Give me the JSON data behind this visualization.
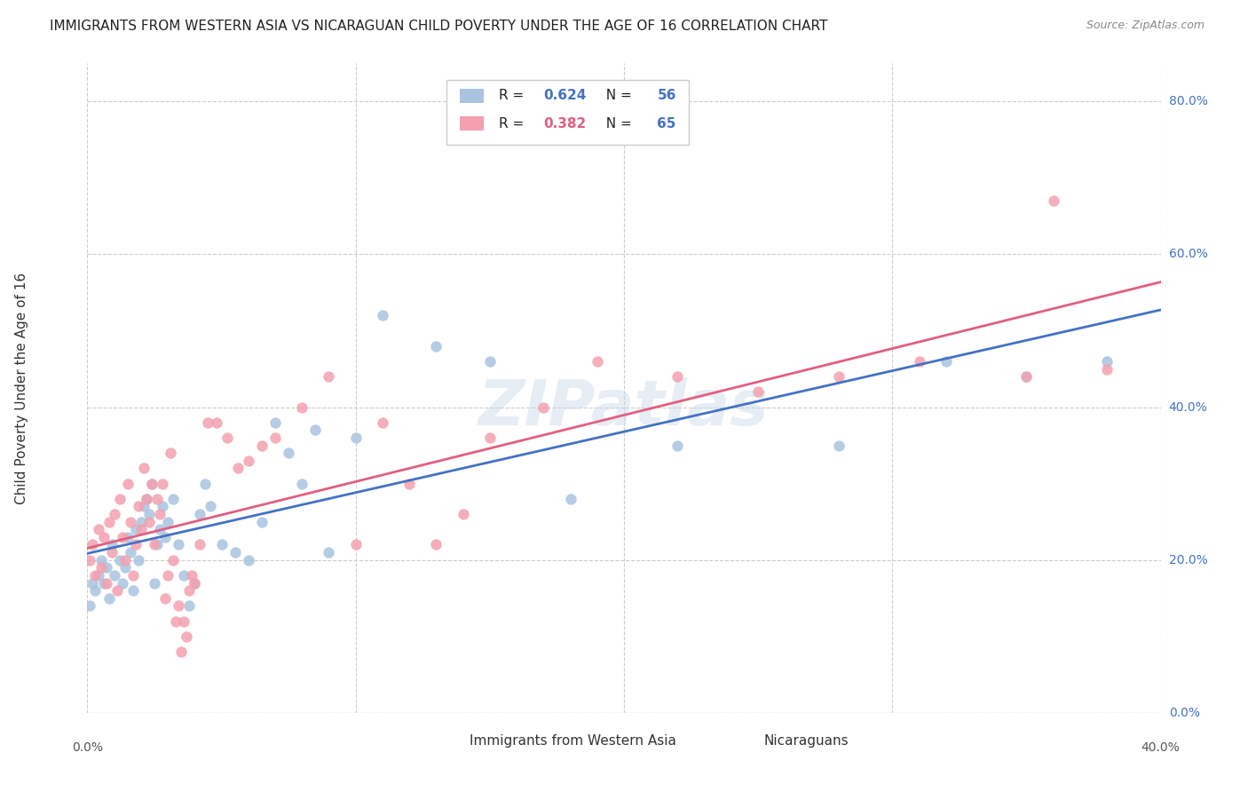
{
  "title": "IMMIGRANTS FROM WESTERN ASIA VS NICARAGUAN CHILD POVERTY UNDER THE AGE OF 16 CORRELATION CHART",
  "source": "Source: ZipAtlas.com",
  "ylabel": "Child Poverty Under the Age of 16",
  "right_yticks": [
    "0.0%",
    "20.0%",
    "40.0%",
    "60.0%",
    "80.0%"
  ],
  "right_ytick_vals": [
    0.0,
    0.2,
    0.4,
    0.6,
    0.8
  ],
  "xlim": [
    0.0,
    0.4
  ],
  "ylim": [
    0.0,
    0.85
  ],
  "legend1_r": "0.624",
  "legend1_n": "56",
  "legend2_r": "0.382",
  "legend2_n": "65",
  "legend1_label": "Immigrants from Western Asia",
  "legend2_label": "Nicaraguans",
  "color_blue": "#a8c4e0",
  "color_pink": "#f4a0b0",
  "line_color_blue": "#4472c4",
  "line_color_pink": "#e06080",
  "background_color": "#ffffff",
  "watermark": "ZIPatlas",
  "blue_scatter_x": [
    0.001,
    0.002,
    0.003,
    0.004,
    0.005,
    0.006,
    0.007,
    0.008,
    0.009,
    0.01,
    0.012,
    0.013,
    0.014,
    0.015,
    0.016,
    0.017,
    0.018,
    0.019,
    0.02,
    0.021,
    0.022,
    0.023,
    0.024,
    0.025,
    0.026,
    0.027,
    0.028,
    0.029,
    0.03,
    0.032,
    0.034,
    0.036,
    0.038,
    0.04,
    0.042,
    0.044,
    0.046,
    0.05,
    0.055,
    0.06,
    0.065,
    0.07,
    0.075,
    0.08,
    0.085,
    0.09,
    0.1,
    0.11,
    0.13,
    0.15,
    0.18,
    0.22,
    0.28,
    0.32,
    0.35,
    0.38
  ],
  "blue_scatter_y": [
    0.14,
    0.17,
    0.16,
    0.18,
    0.2,
    0.17,
    0.19,
    0.15,
    0.22,
    0.18,
    0.2,
    0.17,
    0.19,
    0.23,
    0.21,
    0.16,
    0.24,
    0.2,
    0.25,
    0.27,
    0.28,
    0.26,
    0.3,
    0.17,
    0.22,
    0.24,
    0.27,
    0.23,
    0.25,
    0.28,
    0.22,
    0.18,
    0.14,
    0.17,
    0.26,
    0.3,
    0.27,
    0.22,
    0.21,
    0.2,
    0.25,
    0.38,
    0.34,
    0.3,
    0.37,
    0.21,
    0.36,
    0.52,
    0.48,
    0.46,
    0.28,
    0.35,
    0.35,
    0.46,
    0.44,
    0.46
  ],
  "pink_scatter_x": [
    0.001,
    0.002,
    0.003,
    0.004,
    0.005,
    0.006,
    0.007,
    0.008,
    0.009,
    0.01,
    0.011,
    0.012,
    0.013,
    0.014,
    0.015,
    0.016,
    0.017,
    0.018,
    0.019,
    0.02,
    0.021,
    0.022,
    0.023,
    0.024,
    0.025,
    0.026,
    0.027,
    0.028,
    0.029,
    0.03,
    0.031,
    0.032,
    0.033,
    0.034,
    0.035,
    0.036,
    0.037,
    0.038,
    0.039,
    0.04,
    0.042,
    0.045,
    0.048,
    0.052,
    0.056,
    0.06,
    0.065,
    0.07,
    0.08,
    0.09,
    0.1,
    0.11,
    0.12,
    0.13,
    0.14,
    0.15,
    0.17,
    0.19,
    0.22,
    0.25,
    0.28,
    0.31,
    0.35,
    0.36,
    0.38
  ],
  "pink_scatter_y": [
    0.2,
    0.22,
    0.18,
    0.24,
    0.19,
    0.23,
    0.17,
    0.25,
    0.21,
    0.26,
    0.16,
    0.28,
    0.23,
    0.2,
    0.3,
    0.25,
    0.18,
    0.22,
    0.27,
    0.24,
    0.32,
    0.28,
    0.25,
    0.3,
    0.22,
    0.28,
    0.26,
    0.3,
    0.15,
    0.18,
    0.34,
    0.2,
    0.12,
    0.14,
    0.08,
    0.12,
    0.1,
    0.16,
    0.18,
    0.17,
    0.22,
    0.38,
    0.38,
    0.36,
    0.32,
    0.33,
    0.35,
    0.36,
    0.4,
    0.44,
    0.22,
    0.38,
    0.3,
    0.22,
    0.26,
    0.36,
    0.4,
    0.46,
    0.44,
    0.42,
    0.44,
    0.46,
    0.44,
    0.67,
    0.45
  ]
}
